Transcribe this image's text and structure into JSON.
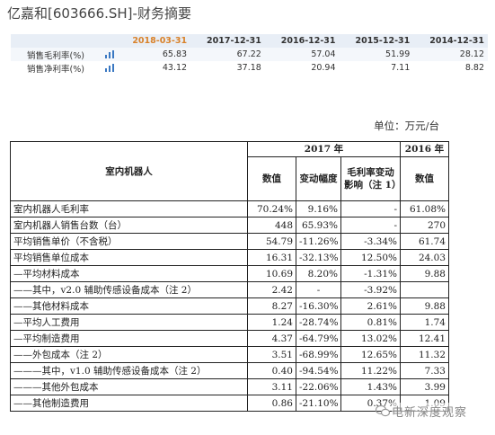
{
  "page_title": "亿嘉和[603666.SH]-财务摘要",
  "summary": {
    "columns": [
      "2018-03-31",
      "2017-12-31",
      "2016-12-31",
      "2015-12-31",
      "2014-12-31"
    ],
    "rows": [
      {
        "label": "销售毛利率(%)",
        "values": [
          "65.83",
          "67.22",
          "57.04",
          "51.99",
          "28.12"
        ]
      },
      {
        "label": "销售净利率(%)",
        "values": [
          "43.12",
          "37.18",
          "20.94",
          "7.11",
          "8.82"
        ]
      }
    ],
    "highlight_color": "#d9822b",
    "icon": "bar-chart-icon"
  },
  "unit": "单位：万元/台",
  "detail": {
    "header": {
      "row_label": "室内机器人",
      "group_2017": "2017 年",
      "group_2016": "2016 年",
      "col_value": "数值",
      "col_change": "变动幅度",
      "col_impact": "毛利率变动影响（注 1）",
      "col_value_2016": "数值"
    },
    "rows": [
      {
        "name": "室内机器人毛利率",
        "v2017": "70.24%",
        "change": "9.16%",
        "impact": "-",
        "v2016": "61.08%"
      },
      {
        "name": "室内机器人销售台数（台）",
        "v2017": "448",
        "change": "65.93%",
        "impact": "-",
        "v2016": "270"
      },
      {
        "name": "平均销售单价（不含税）",
        "v2017": "54.79",
        "change": "-11.26%",
        "impact": "-3.34%",
        "v2016": "61.74"
      },
      {
        "name": "平均销售单位成本",
        "v2017": "16.31",
        "change": "-32.13%",
        "impact": "12.50%",
        "v2016": "24.03"
      },
      {
        "name": "—平均材料成本",
        "v2017": "10.69",
        "change": "8.20%",
        "impact": "-1.31%",
        "v2016": "9.88"
      },
      {
        "name": "——其中，v2.0 辅助传感设备成本（注 2）",
        "v2017": "2.42",
        "change": "-",
        "impact": "-3.92%",
        "v2016": ""
      },
      {
        "name": "——其他材料成本",
        "v2017": "8.27",
        "change": "-16.30%",
        "impact": "2.61%",
        "v2016": "9.88"
      },
      {
        "name": "—平均人工费用",
        "v2017": "1.24",
        "change": "-28.74%",
        "impact": "0.81%",
        "v2016": "1.74"
      },
      {
        "name": "—平均制造费用",
        "v2017": "4.37",
        "change": "-64.79%",
        "impact": "13.02%",
        "v2016": "12.41"
      },
      {
        "name": "——外包成本（注 2）",
        "v2017": "3.51",
        "change": "-68.99%",
        "impact": "12.65%",
        "v2016": "11.32"
      },
      {
        "name": "———其中，v1.0 辅助传感设备成本（注 2）",
        "v2017": "0.40",
        "change": "-94.54%",
        "impact": "11.22%",
        "v2016": "7.33"
      },
      {
        "name": "———其他外包成本",
        "v2017": "3.11",
        "change": "-22.06%",
        "impact": "1.43%",
        "v2016": "3.99"
      },
      {
        "name": "——其他制造费用",
        "v2017": "0.86",
        "change": "-21.10%",
        "impact": "0.37%",
        "v2016": "1.09"
      }
    ]
  },
  "watermark": "电新深度观察"
}
